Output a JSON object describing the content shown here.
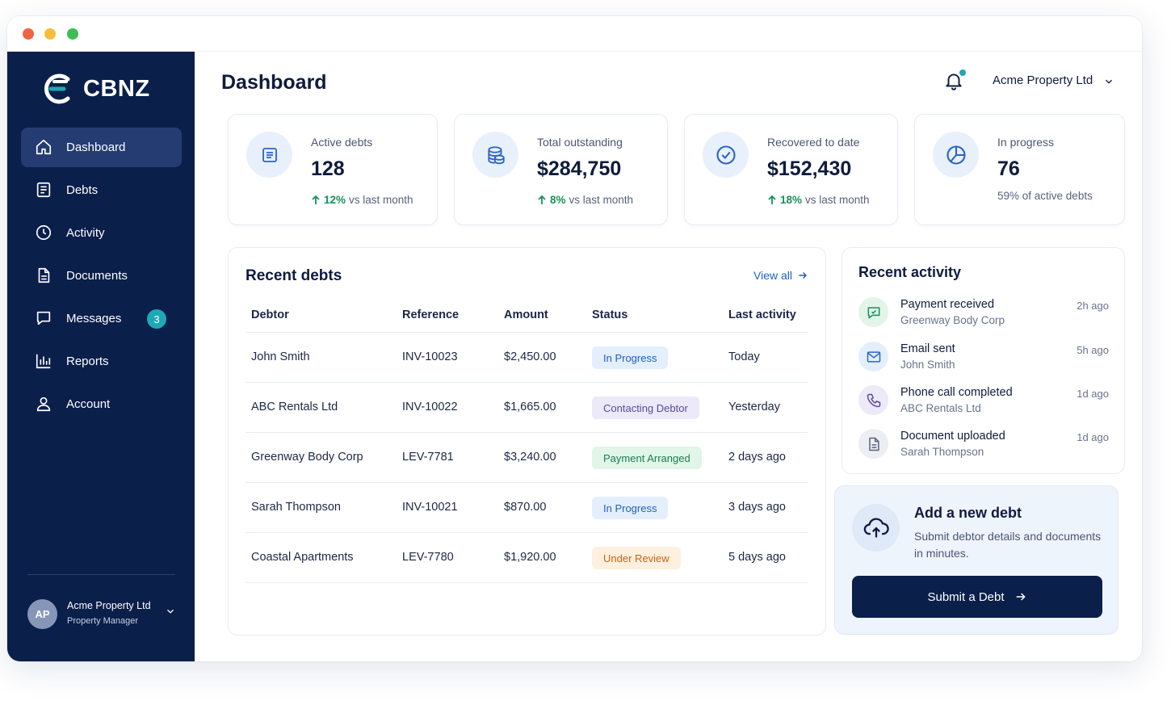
{
  "brand": {
    "name": "CBNZ"
  },
  "sidebar": {
    "items": [
      {
        "label": "Dashboard",
        "icon": "home-icon"
      },
      {
        "label": "Debts",
        "icon": "document-list-icon"
      },
      {
        "label": "Activity",
        "icon": "clock-icon"
      },
      {
        "label": "Documents",
        "icon": "file-icon"
      },
      {
        "label": "Messages",
        "icon": "chat-icon",
        "badge": "3"
      },
      {
        "label": "Reports",
        "icon": "bar-chart-icon"
      },
      {
        "label": "Account",
        "icon": "user-icon"
      }
    ],
    "active": "Dashboard",
    "user": {
      "initials": "AP",
      "name": "Acme Property Ltd",
      "role": "Property Manager"
    }
  },
  "header": {
    "title": "Dashboard",
    "org": "Acme Property Ltd"
  },
  "stats": [
    {
      "label": "Active debts",
      "value": "128",
      "pct": "12%",
      "note": "vs last month",
      "icon": "document-icon"
    },
    {
      "label": "Total outstanding",
      "value": "$284,750",
      "pct": "8%",
      "note": "vs last month",
      "icon": "coins-icon"
    },
    {
      "label": "Recovered to date",
      "value": "$152,430",
      "pct": "18%",
      "note": "vs last month",
      "icon": "check-circle-icon"
    },
    {
      "label": "In progress",
      "value": "76",
      "note": "59% of active debts",
      "icon": "pie-chart-icon"
    }
  ],
  "recent_debts": {
    "title": "Recent debts",
    "view_all": "View all",
    "columns": [
      "Debtor",
      "Reference",
      "Amount",
      "Status",
      "Last activity"
    ],
    "rows": [
      {
        "debtor": "John Smith",
        "reference": "INV-10023",
        "amount": "$2,450.00",
        "status": "In Progress",
        "last": "Today"
      },
      {
        "debtor": "ABC Rentals Ltd",
        "reference": "INV-10022",
        "amount": "$1,665.00",
        "status": "Contacting Debtor",
        "last": "Yesterday"
      },
      {
        "debtor": "Greenway Body Corp",
        "reference": "LEV-7781",
        "amount": "$3,240.00",
        "status": "Payment Arranged",
        "last": "2 days ago"
      },
      {
        "debtor": "Sarah Thompson",
        "reference": "INV-10021",
        "amount": "$870.00",
        "status": "In Progress",
        "last": "3 days ago"
      },
      {
        "debtor": "Coastal Apartments",
        "reference": "LEV-7780",
        "amount": "$1,920.00",
        "status": "Under Review",
        "last": "5 days ago"
      }
    ]
  },
  "status_colors": {
    "In Progress": {
      "bg": "#e3effc",
      "fg": "#1f5fbf"
    },
    "Contacting Debtor": {
      "bg": "#ece9f8",
      "fg": "#5a4a9a"
    },
    "Payment Arranged": {
      "bg": "#e1f5e8",
      "fg": "#17804d"
    },
    "Under Review": {
      "bg": "#fdf0de",
      "fg": "#c2651a"
    }
  },
  "recent_activity": {
    "title": "Recent activity",
    "items": [
      {
        "title": "Payment received",
        "sub": "Greenway Body Corp",
        "time": "2h ago",
        "icon": "message-check-icon"
      },
      {
        "title": "Email sent",
        "sub": "John Smith",
        "time": "5h ago",
        "icon": "mail-icon"
      },
      {
        "title": "Phone call completed",
        "sub": "ABC Rentals Ltd",
        "time": "1d ago",
        "icon": "phone-icon"
      },
      {
        "title": "Document uploaded",
        "sub": "Sarah Thompson",
        "time": "1d ago",
        "icon": "file-text-icon"
      }
    ]
  },
  "cta": {
    "title": "Add a new debt",
    "desc": "Submit debtor details and documents in minutes.",
    "button": "Submit a Debt",
    "icon": "cloud-upload-icon"
  },
  "colors": {
    "navy": "#0b1f4b",
    "accent": "#1fa8b4",
    "link": "#1f5fbf",
    "positive": "#17915a"
  }
}
